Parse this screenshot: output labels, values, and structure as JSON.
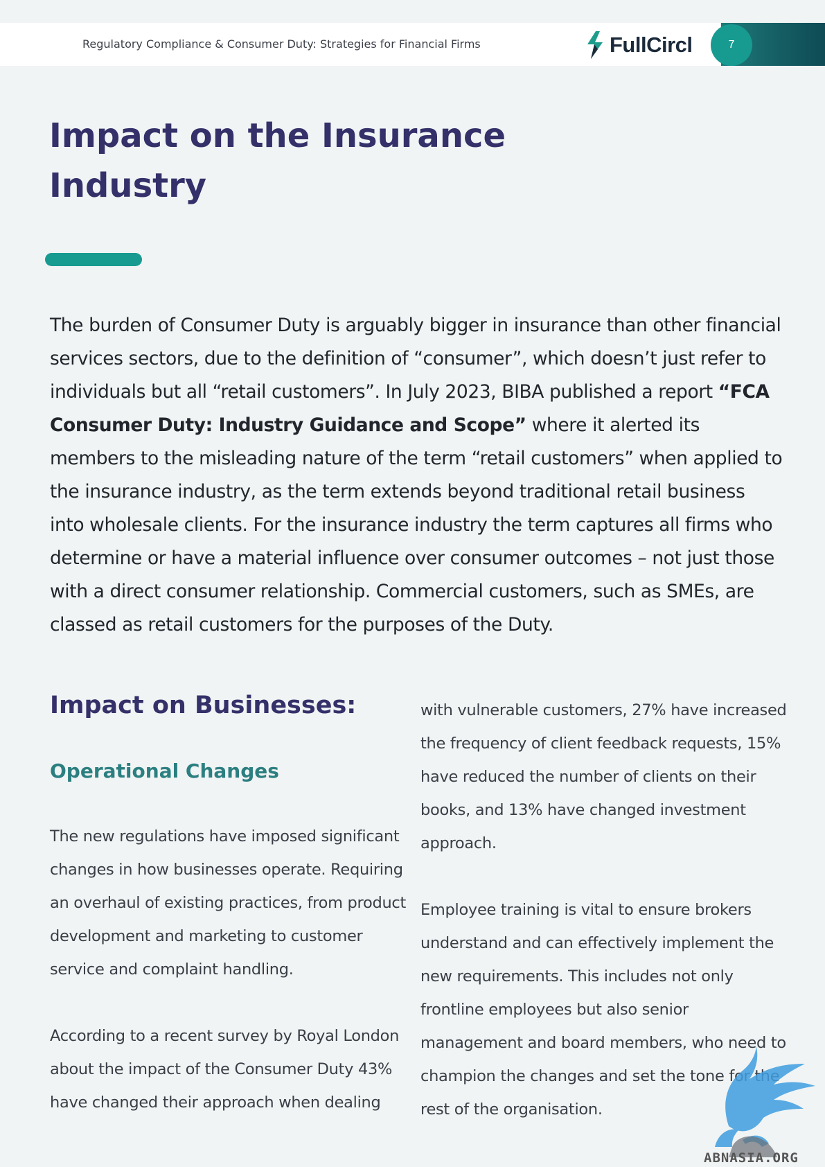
{
  "header": {
    "title": "Regulatory Compliance & Consumer Duty: Strategies for Financial Firms",
    "logo_text": "FullCircl",
    "page_number": "7"
  },
  "title": "Impact on the Insurance Industry",
  "intro": {
    "part1": "The burden of Consumer Duty is arguably bigger in insurance than other financial services sectors, due to the definition of “consumer”, which doesn’t just refer to individuals but all “retail customers”. In July 2023, BIBA published a report ",
    "report_name": "“FCA Consumer Duty: Industry Guidance and Scope”",
    "part2": " where it alerted its members to the misleading nature of the term “retail customers” when applied to the insurance industry, as the term extends beyond traditional retail business into wholesale clients. For the insurance industry the term captures all firms who determine or have a material influence over consumer outcomes – not just those with a direct consumer relationship. Commercial customers, such as SMEs, are classed as retail customers for the purposes of the Duty."
  },
  "businesses": {
    "heading": "Impact on Businesses:",
    "subheading": "Operational Changes",
    "paragraph1": "The new regulations have imposed significant changes in how businesses operate. Requiring an overhaul of existing practices, from product development and marketing to customer service and complaint handling.",
    "paragraph2": "According to a recent survey by Royal London about the impact of the Consumer Duty 43% have changed their approach when dealing",
    "paragraph3": "with vulnerable customers, 27% have increased the frequency of client feedback requests, 15% have reduced the number of clients on their books, and 13% have changed investment approach.",
    "paragraph4": "Employee training is vital to ensure brokers understand and can effectively implement the new requirements. This includes not only frontline employees but also senior management and board members, who need to champion the changes and set the tone for the rest of the organisation."
  },
  "watermark": {
    "text": "ABNASIA.ORG"
  },
  "colors": {
    "title": "#343069",
    "teal": "#179b91",
    "subheading": "#2b7f80"
  }
}
